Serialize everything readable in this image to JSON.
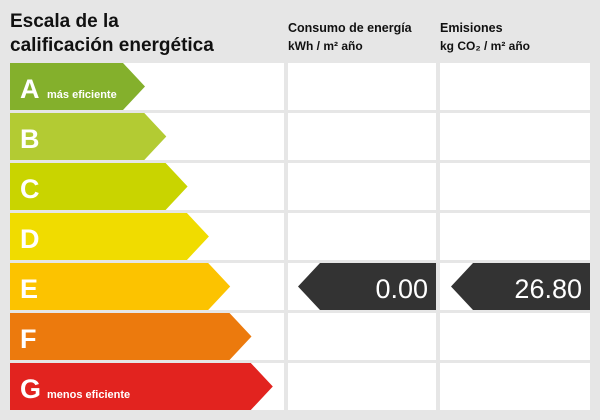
{
  "header": {
    "title_lines": [
      "Escala de la",
      "calificación energética"
    ],
    "consumption": {
      "title": "Consumo de energía",
      "unit": "kWh / m² año"
    },
    "emissions": {
      "title": "Emisiones",
      "unit": "kg CO₂ / m² año"
    }
  },
  "rows": [
    {
      "letter": "A",
      "note": "más eficiente",
      "color": "#84b02c"
    },
    {
      "letter": "B",
      "color": "#b3cb33"
    },
    {
      "letter": "C",
      "color": "#c9d400"
    },
    {
      "letter": "D",
      "color": "#f0dc00"
    },
    {
      "letter": "E",
      "color": "#fcc300",
      "consumption": "0.00",
      "emissions": "26.80"
    },
    {
      "letter": "F",
      "color": "#ec7a0d"
    },
    {
      "letter": "G",
      "note": "menos eficiente",
      "color": "#e2231f"
    }
  ]
}
